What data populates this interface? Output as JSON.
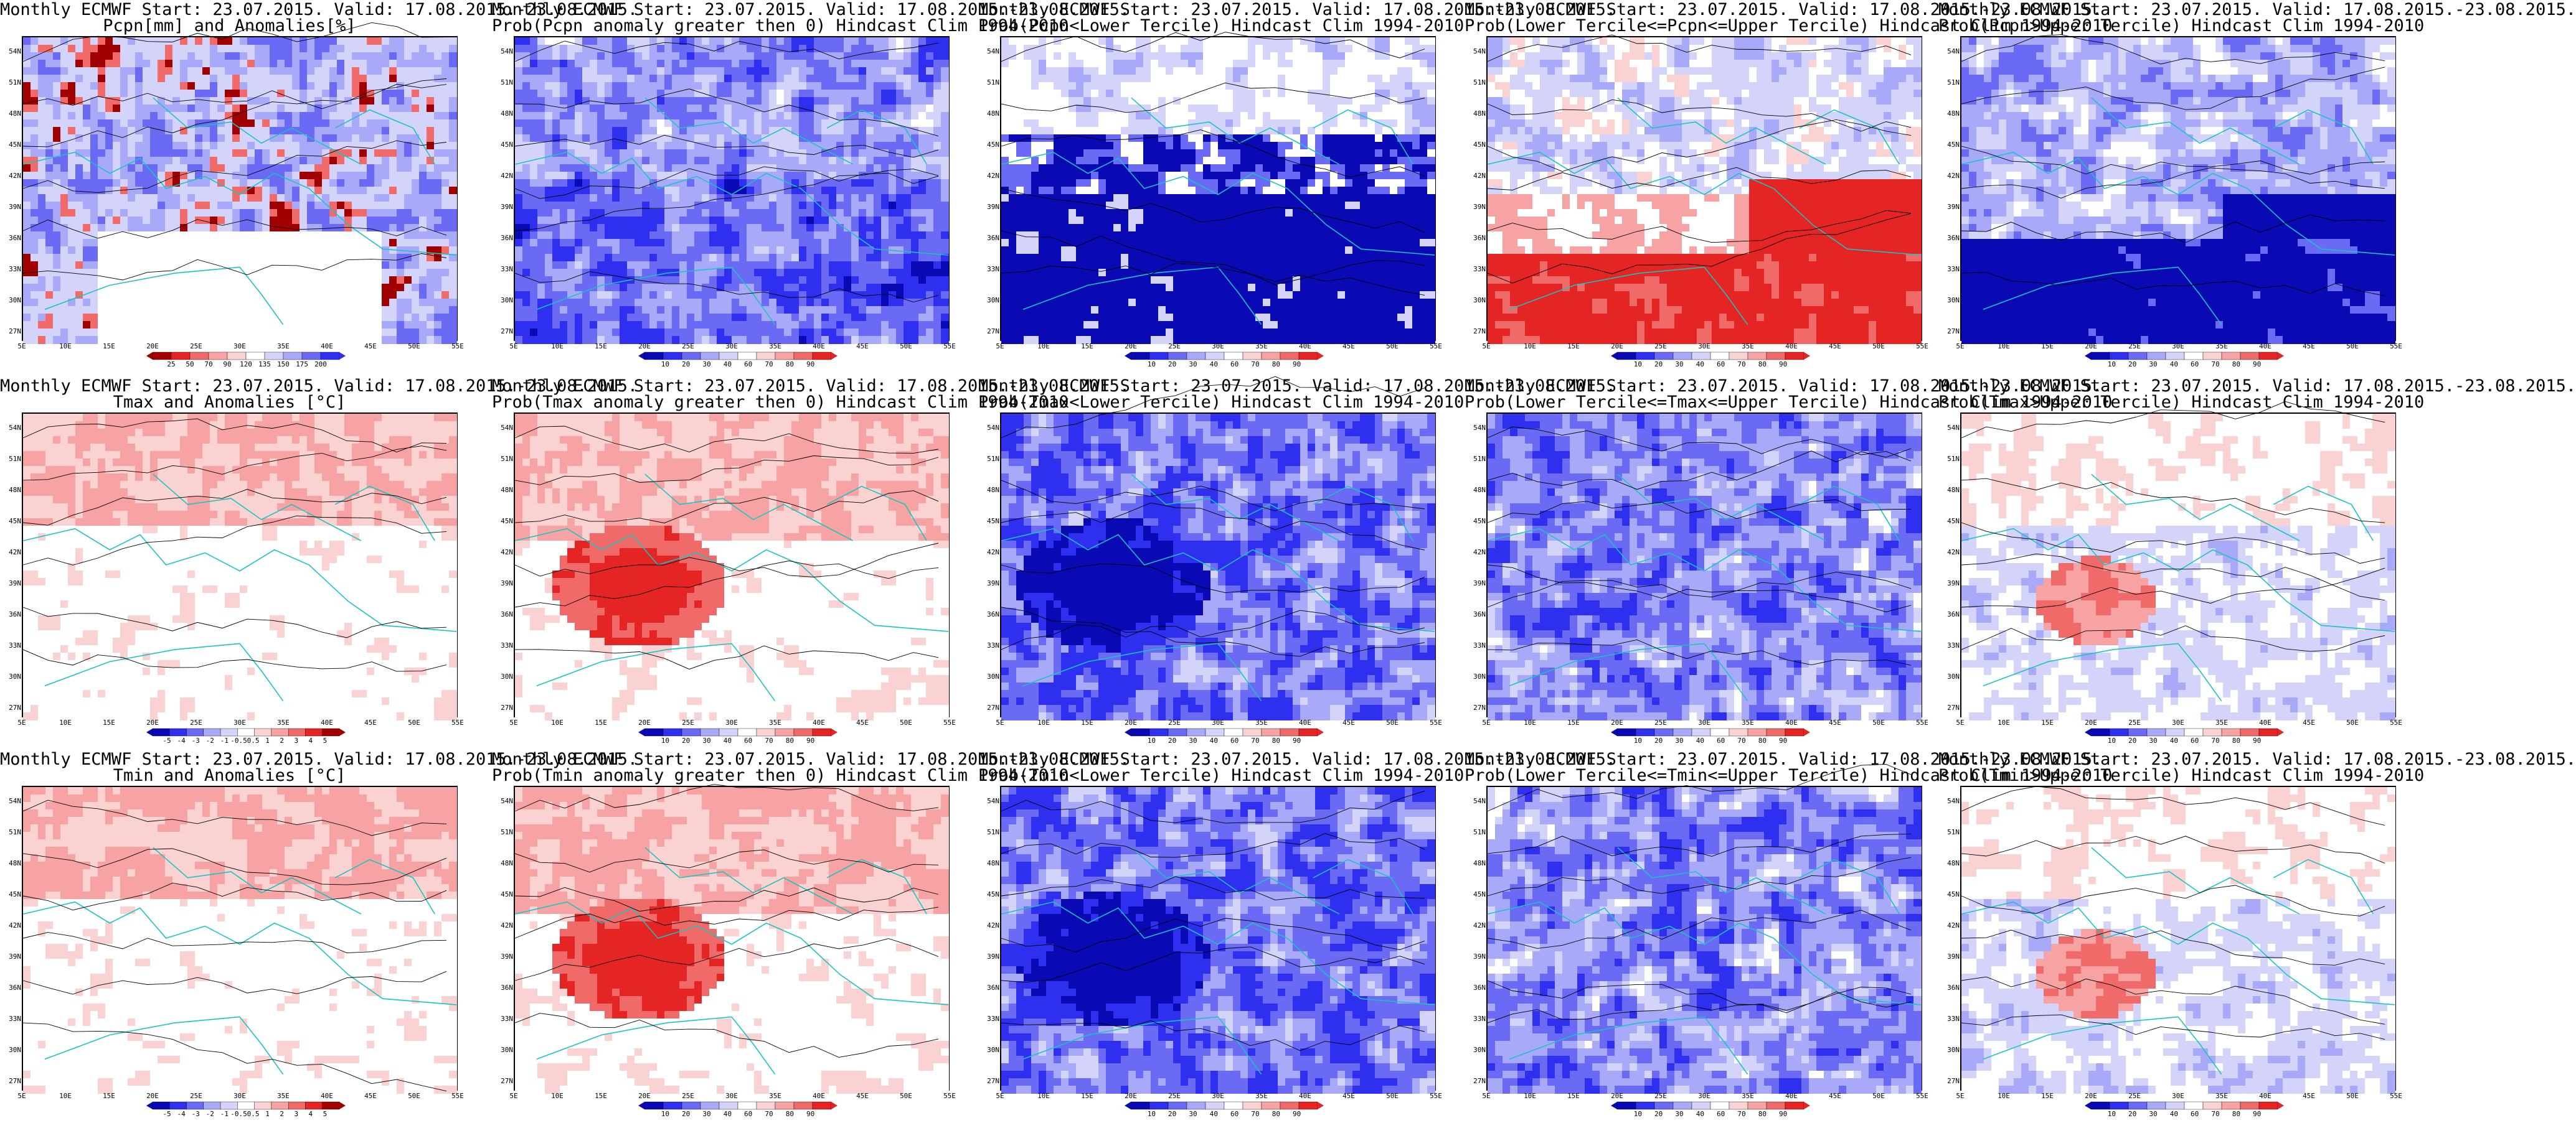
{
  "figure": {
    "columns": 5,
    "rows": 3,
    "lat_labels": [
      "54N",
      "51N",
      "48N",
      "45N",
      "42N",
      "39N",
      "36N",
      "33N",
      "30N",
      "27N"
    ],
    "lon_labels": [
      "5E",
      "10E",
      "15E",
      "20E",
      "25E",
      "30E",
      "35E",
      "40E",
      "45E",
      "50E",
      "55E"
    ],
    "colors": {
      "dark_blue": "#0a0ab4",
      "blue": "#2f2ff0",
      "mid_blue": "#6a6af5",
      "light_blue": "#a9a9f9",
      "pale_blue": "#d4d4fb",
      "white": "#ffffff",
      "pale_red": "#fbd2d2",
      "light_red": "#f7a3a3",
      "mid_red": "#f06a6a",
      "red": "#e52424",
      "dark_red": "#a00000",
      "coast": "#19c3c3",
      "contour": "#000000"
    }
  },
  "panels": [
    {
      "line1": "Monthly ECMWF Start: 23.07.2015. Valid: 17.08.2015.-23.08.2015.",
      "line2": "Pcpn[mm] and Anomalies[%]",
      "palette": "anom_pcpn",
      "ticks": [
        "25",
        "50",
        "70",
        "90",
        "120",
        "135",
        "150",
        "175",
        "200"
      ],
      "field": "pcpn_anom"
    },
    {
      "line1": "Monthly ECMWF Start: 23.07.2015. Valid: 17.08.2015.-23.08.2015.",
      "line2": "Prob(Pcpn anomaly greater then 0) Hindcast Clim 1994-2010",
      "palette": "prob",
      "ticks": [
        "10",
        "20",
        "30",
        "40",
        "60",
        "70",
        "80",
        "90"
      ],
      "field": "blue_heavy"
    },
    {
      "line1": "Monthly ECMWF Start: 23.07.2015. Valid: 17.08.2015.-23.08.2015.",
      "line2": "Prob(Pcpn<Lower Tercile) Hindcast Clim 1994-2010",
      "palette": "prob",
      "ticks": [
        "10",
        "20",
        "30",
        "40",
        "60",
        "70",
        "80",
        "90"
      ],
      "field": "dark_south"
    },
    {
      "line1": "Monthly ECMWF Start: 23.07.2015. Valid: 17.08.2015.-23.08.2015.",
      "line2": "Prob(Lower Tercile<=Pcpn<=Upper Tercile) Hindcast Clim 1994-2010",
      "palette": "prob",
      "ticks": [
        "10",
        "20",
        "30",
        "40",
        "60",
        "70",
        "80",
        "90"
      ],
      "field": "red_south"
    },
    {
      "line1": "Monthly ECMWF Start: 23.07.2015. Valid: 17.08.2015.-23.08.2015.",
      "line2": "Prob(Pcpn>Upper Tercile) Hindcast Clim 1994-2010",
      "palette": "prob",
      "ticks": [
        "10",
        "20",
        "30",
        "40",
        "60",
        "70",
        "80",
        "90"
      ],
      "field": "blue_south"
    },
    {
      "line1": "Monthly ECMWF Start: 23.07.2015. Valid: 17.08.2015.-23.08.2015.",
      "line2": "Tmax and Anomalies [°C]",
      "palette": "anom_temp",
      "ticks": [
        "-5",
        "-4",
        "-3",
        "-2",
        "-1",
        "-0.5",
        "0.5",
        "1",
        "2",
        "3",
        "4",
        "5"
      ],
      "field": "light_red"
    },
    {
      "line1": "Monthly ECMWF Start: 23.07.2015. Valid: 17.08.2015.-23.08.2015.",
      "line2": "Prob(Tmax anomaly greater then 0) Hindcast Clim 1994-2010",
      "palette": "prob",
      "ticks": [
        "10",
        "20",
        "30",
        "40",
        "60",
        "70",
        "80",
        "90"
      ],
      "field": "red_center"
    },
    {
      "line1": "Monthly ECMWF Start: 23.07.2015. Valid: 17.08.2015.-23.08.2015.",
      "line2": "Prob(Tmax<Lower Tercile) Hindcast Clim 1994-2010",
      "palette": "prob",
      "ticks": [
        "10",
        "20",
        "30",
        "40",
        "60",
        "70",
        "80",
        "90"
      ],
      "field": "blue_center"
    },
    {
      "line1": "Monthly ECMWF Start: 23.07.2015. Valid: 17.08.2015.-23.08.2015.",
      "line2": "Prob(Lower Tercile<=Tmax<=Upper Tercile) Hindcast Clim 1994-2010",
      "palette": "prob",
      "ticks": [
        "10",
        "20",
        "30",
        "40",
        "60",
        "70",
        "80",
        "90"
      ],
      "field": "blue_mixed"
    },
    {
      "line1": "Monthly ECMWF Start: 23.07.2015. Valid: 17.08.2015.-23.08.2015.",
      "line2": "Prob(Tmax>Upper Tercile) Hindcast Clim 1994-2010",
      "palette": "prob",
      "ticks": [
        "10",
        "20",
        "30",
        "40",
        "60",
        "70",
        "80",
        "90"
      ],
      "field": "red_mixed"
    },
    {
      "line1": "Monthly ECMWF Start: 23.07.2015. Valid: 17.08.2015.-23.08.2015.",
      "line2": "Tmin and Anomalies [°C]",
      "palette": "anom_temp",
      "ticks": [
        "-5",
        "-4",
        "-3",
        "-2",
        "-1",
        "-0.5",
        "0.5",
        "1",
        "2",
        "3",
        "4",
        "5"
      ],
      "field": "light_red"
    },
    {
      "line1": "Monthly ECMWF Start: 23.07.2015. Valid: 17.08.2015.-23.08.2015.",
      "line2": "Prob(Tmin anomaly greater then 0) Hindcast Clim 1994-2010",
      "palette": "prob",
      "ticks": [
        "10",
        "20",
        "30",
        "40",
        "60",
        "70",
        "80",
        "90"
      ],
      "field": "red_center"
    },
    {
      "line1": "Monthly ECMWF Start: 23.07.2015. Valid: 17.08.2015.-23.08.2015.",
      "line2": "Prob(Tmin<Lower Tercile) Hindcast Clim 1994-2010",
      "palette": "prob",
      "ticks": [
        "10",
        "20",
        "30",
        "40",
        "60",
        "70",
        "80",
        "90"
      ],
      "field": "blue_center"
    },
    {
      "line1": "Monthly ECMWF Start: 23.07.2015. Valid: 17.08.2015.-23.08.2015.",
      "line2": "Prob(Lower Tercile<=Tmin<=Upper Tercile) Hindcast Clim 1994-2010",
      "palette": "prob",
      "ticks": [
        "10",
        "20",
        "30",
        "40",
        "60",
        "70",
        "80",
        "90"
      ],
      "field": "blue_mixed"
    },
    {
      "line1": "Monthly ECMWF Start: 23.07.2015. Valid: 17.08.2015.-23.08.2015.",
      "line2": "Prob(Tmin>Upper Tercile) Hindcast Clim 1994-2010",
      "palette": "prob",
      "ticks": [
        "10",
        "20",
        "30",
        "40",
        "60",
        "70",
        "80",
        "90"
      ],
      "field": "red_mixed"
    }
  ]
}
